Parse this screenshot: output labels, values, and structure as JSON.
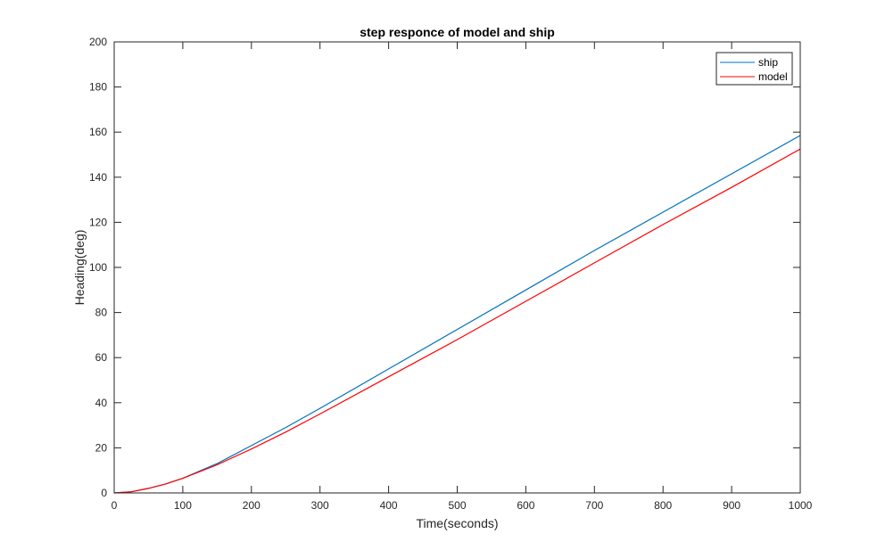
{
  "chart_data": {
    "type": "line",
    "title": "step responce of model and ship",
    "xlabel": "Time(seconds)",
    "ylabel": "Heading(deg)",
    "xlim": [
      0,
      1000
    ],
    "ylim": [
      0,
      200
    ],
    "xticks": [
      0,
      100,
      200,
      300,
      400,
      500,
      600,
      700,
      800,
      900,
      1000
    ],
    "yticks": [
      0,
      20,
      40,
      60,
      80,
      100,
      120,
      140,
      160,
      180,
      200
    ],
    "grid": false,
    "legend": "top-right",
    "series": [
      {
        "name": "ship",
        "color": "#0072BD",
        "x": [
          0,
          25,
          50,
          75,
          100,
          150,
          200,
          250,
          300,
          400,
          500,
          600,
          700,
          800,
          900,
          1000
        ],
        "y": [
          0,
          0.5,
          2,
          4,
          6.5,
          13,
          21,
          29,
          37.5,
          55,
          72.5,
          90,
          107.5,
          124.5,
          141.5,
          158.5
        ]
      },
      {
        "name": "model",
        "color": "#FF0000",
        "x": [
          0,
          25,
          50,
          75,
          100,
          150,
          200,
          250,
          300,
          400,
          500,
          600,
          700,
          800,
          900,
          1000
        ],
        "y": [
          0,
          0.5,
          2,
          4,
          6.5,
          12.5,
          19.5,
          27,
          35,
          51.5,
          68,
          85,
          102,
          119,
          135.5,
          152.5
        ]
      }
    ]
  }
}
